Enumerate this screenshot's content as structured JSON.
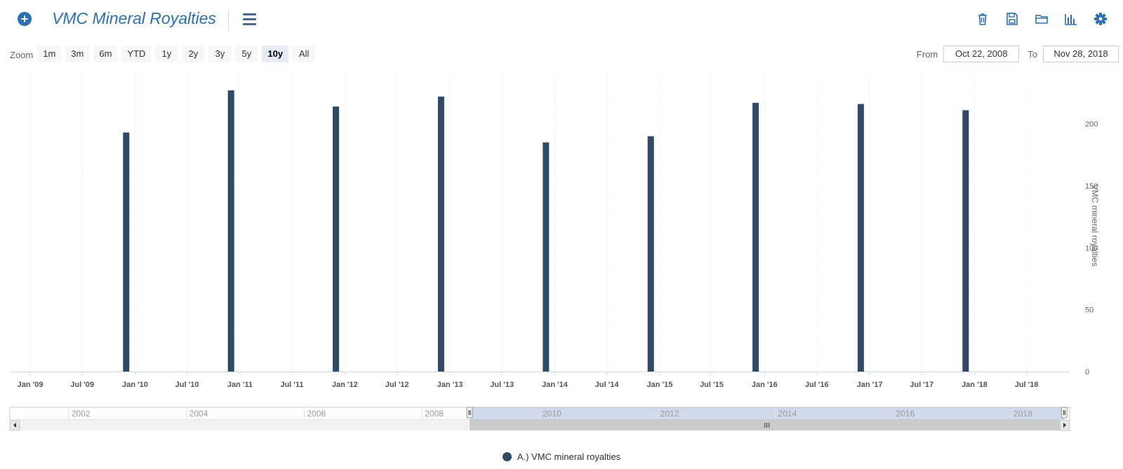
{
  "header": {
    "title": "VMC Mineral Royalties",
    "add_icon": "plus-circle-icon",
    "menu_icon": "hamburger-menu-icon",
    "tools": [
      "trash-icon",
      "save-icon",
      "folder-open-icon",
      "bar-chart-icon",
      "gear-icon"
    ],
    "accent_color": "#2d6fb0"
  },
  "zoom": {
    "label": "Zoom",
    "buttons": [
      "1m",
      "3m",
      "6m",
      "YTD",
      "1y",
      "2y",
      "3y",
      "5y",
      "10y",
      "All"
    ],
    "active": "10y"
  },
  "range": {
    "from_label": "From",
    "from_value": "Oct 22, 2008",
    "to_label": "To",
    "to_value": "Nov 28, 2018"
  },
  "chart_data": {
    "type": "bar",
    "title": "",
    "xlabel": "",
    "ylabel": "VMC mineral royalties",
    "ylim": [
      0,
      240
    ],
    "y_ticks": [
      0,
      50,
      100,
      150,
      200
    ],
    "y_axis_position": "right",
    "x_range": [
      "2008-10-22",
      "2018-11-28"
    ],
    "x_ticks": [
      {
        "date": "2009-01-01",
        "label": "Jan '09"
      },
      {
        "date": "2009-07-01",
        "label": "Jul '09"
      },
      {
        "date": "2010-01-01",
        "label": "Jan '10"
      },
      {
        "date": "2010-07-01",
        "label": "Jul '10"
      },
      {
        "date": "2011-01-01",
        "label": "Jan '11"
      },
      {
        "date": "2011-07-01",
        "label": "Jul '11"
      },
      {
        "date": "2012-01-01",
        "label": "Jan '12"
      },
      {
        "date": "2012-07-01",
        "label": "Jul '12"
      },
      {
        "date": "2013-01-01",
        "label": "Jan '13"
      },
      {
        "date": "2013-07-01",
        "label": "Jul '13"
      },
      {
        "date": "2014-01-01",
        "label": "Jan '14"
      },
      {
        "date": "2014-07-01",
        "label": "Jul '14"
      },
      {
        "date": "2015-01-01",
        "label": "Jan '15"
      },
      {
        "date": "2015-07-01",
        "label": "Jul '15"
      },
      {
        "date": "2016-01-01",
        "label": "Jan '16"
      },
      {
        "date": "2016-07-01",
        "label": "Jul '16"
      },
      {
        "date": "2017-01-01",
        "label": "Jan '17"
      },
      {
        "date": "2017-07-01",
        "label": "Jul '17"
      },
      {
        "date": "2018-01-01",
        "label": "Jan '18"
      },
      {
        "date": "2018-07-01",
        "label": "Jul '18"
      }
    ],
    "series": [
      {
        "name": "A.) VMC mineral royalties",
        "color": "#2e4a66",
        "points": [
          {
            "x": "2009-12-01",
            "y": 193
          },
          {
            "x": "2010-12-01",
            "y": 227
          },
          {
            "x": "2011-12-01",
            "y": 214
          },
          {
            "x": "2012-12-01",
            "y": 222
          },
          {
            "x": "2013-12-01",
            "y": 185
          },
          {
            "x": "2014-12-01",
            "y": 190
          },
          {
            "x": "2015-12-01",
            "y": 217
          },
          {
            "x": "2016-12-01",
            "y": 216
          },
          {
            "x": "2017-12-01",
            "y": 211
          }
        ]
      }
    ],
    "grid": "vertical",
    "legend": "bottom-center",
    "navigator": {
      "labels": [
        "2002",
        "2004",
        "2006",
        "2008",
        "2010",
        "2012",
        "2014",
        "2016",
        "2018"
      ],
      "label_years": [
        2002,
        2004,
        2006,
        2008,
        2010,
        2012,
        2014,
        2016,
        2018
      ],
      "range_years": [
        2001,
        2019
      ],
      "selected": [
        "2008-10-22",
        "2018-11-28"
      ]
    }
  }
}
